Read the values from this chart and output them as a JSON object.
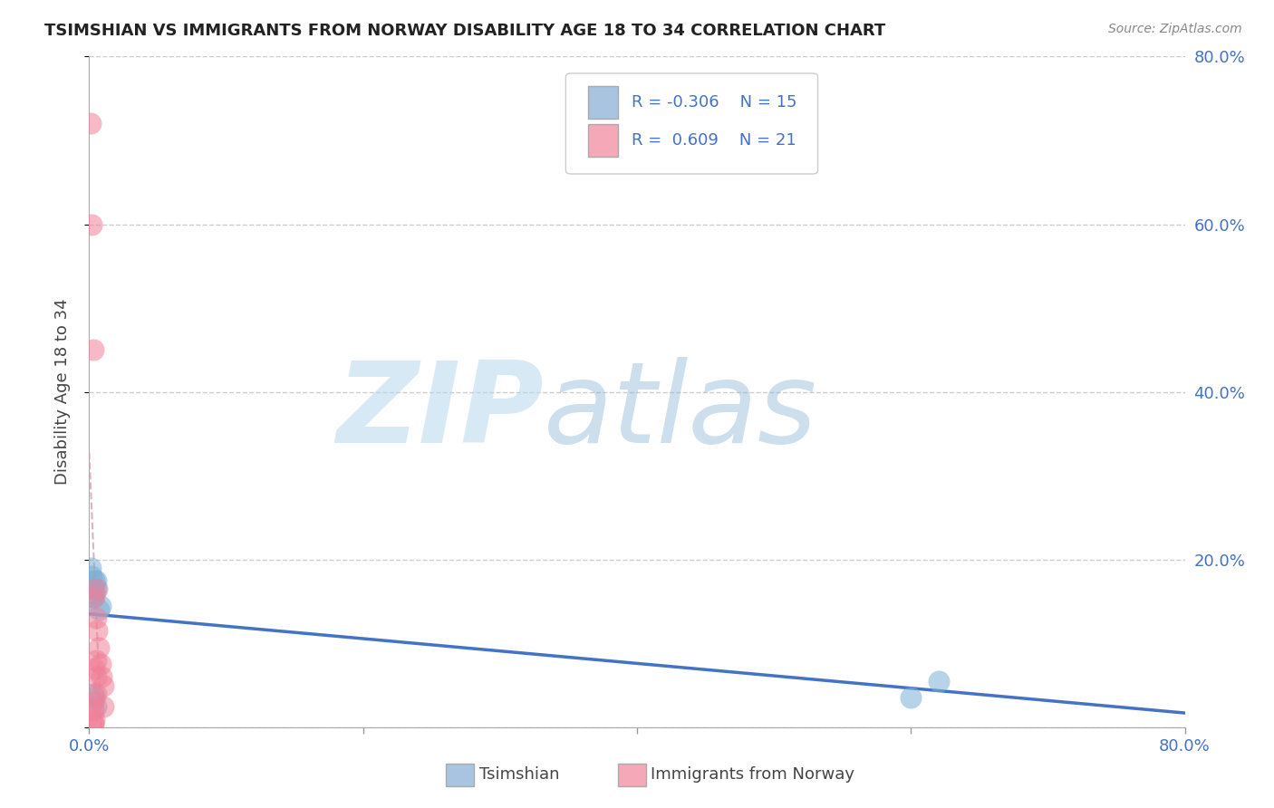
{
  "title": "TSIMSHIAN VS IMMIGRANTS FROM NORWAY DISABILITY AGE 18 TO 34 CORRELATION CHART",
  "source": "Source: ZipAtlas.com",
  "tick_color": "#4472c4",
  "ylabel": "Disability Age 18 to 34",
  "xlim": [
    0.0,
    0.8
  ],
  "ylim": [
    0.0,
    0.8
  ],
  "yticks": [
    0.0,
    0.2,
    0.4,
    0.6,
    0.8
  ],
  "ytick_labels": [
    "",
    "20.0%",
    "40.0%",
    "60.0%",
    "80.0%"
  ],
  "xtick_labels_shown": [
    "0.0%",
    "80.0%"
  ],
  "grid_color": "#cccccc",
  "background_color": "#ffffff",
  "watermark_text": "ZIP",
  "watermark_text2": "atlas",
  "legend_R1": "-0.306",
  "legend_N1": "15",
  "legend_R2": "0.609",
  "legend_N2": "21",
  "legend_color1": "#a8c4e0",
  "legend_color2": "#f4a8b8",
  "tsimshian_x": [
    0.001,
    0.002,
    0.003,
    0.004,
    0.003,
    0.004,
    0.005,
    0.006,
    0.007,
    0.008,
    0.6,
    0.62,
    0.003,
    0.004,
    0.005
  ],
  "tsimshian_y": [
    0.19,
    0.18,
    0.165,
    0.175,
    0.155,
    0.16,
    0.175,
    0.165,
    0.14,
    0.145,
    0.035,
    0.055,
    0.04,
    0.035,
    0.025
  ],
  "norway_x": [
    0.001,
    0.002,
    0.003,
    0.003,
    0.003,
    0.004,
    0.004,
    0.005,
    0.005,
    0.005,
    0.005,
    0.005,
    0.006,
    0.007,
    0.008,
    0.009,
    0.01,
    0.01,
    0.004,
    0.003,
    0.003
  ],
  "norway_y": [
    0.72,
    0.6,
    0.45,
    0.02,
    0.03,
    0.155,
    0.07,
    0.165,
    0.13,
    0.08,
    0.06,
    0.04,
    0.115,
    0.095,
    0.075,
    0.06,
    0.05,
    0.025,
    0.01,
    0.005,
    0.003
  ],
  "tsimshian_color": "#7bafd4",
  "norway_color": "#f08098",
  "trend_blue_color": "#4472c4",
  "trend_pink_solid_color": "#e06080",
  "trend_pink_dash_color": "#d4a0b0"
}
